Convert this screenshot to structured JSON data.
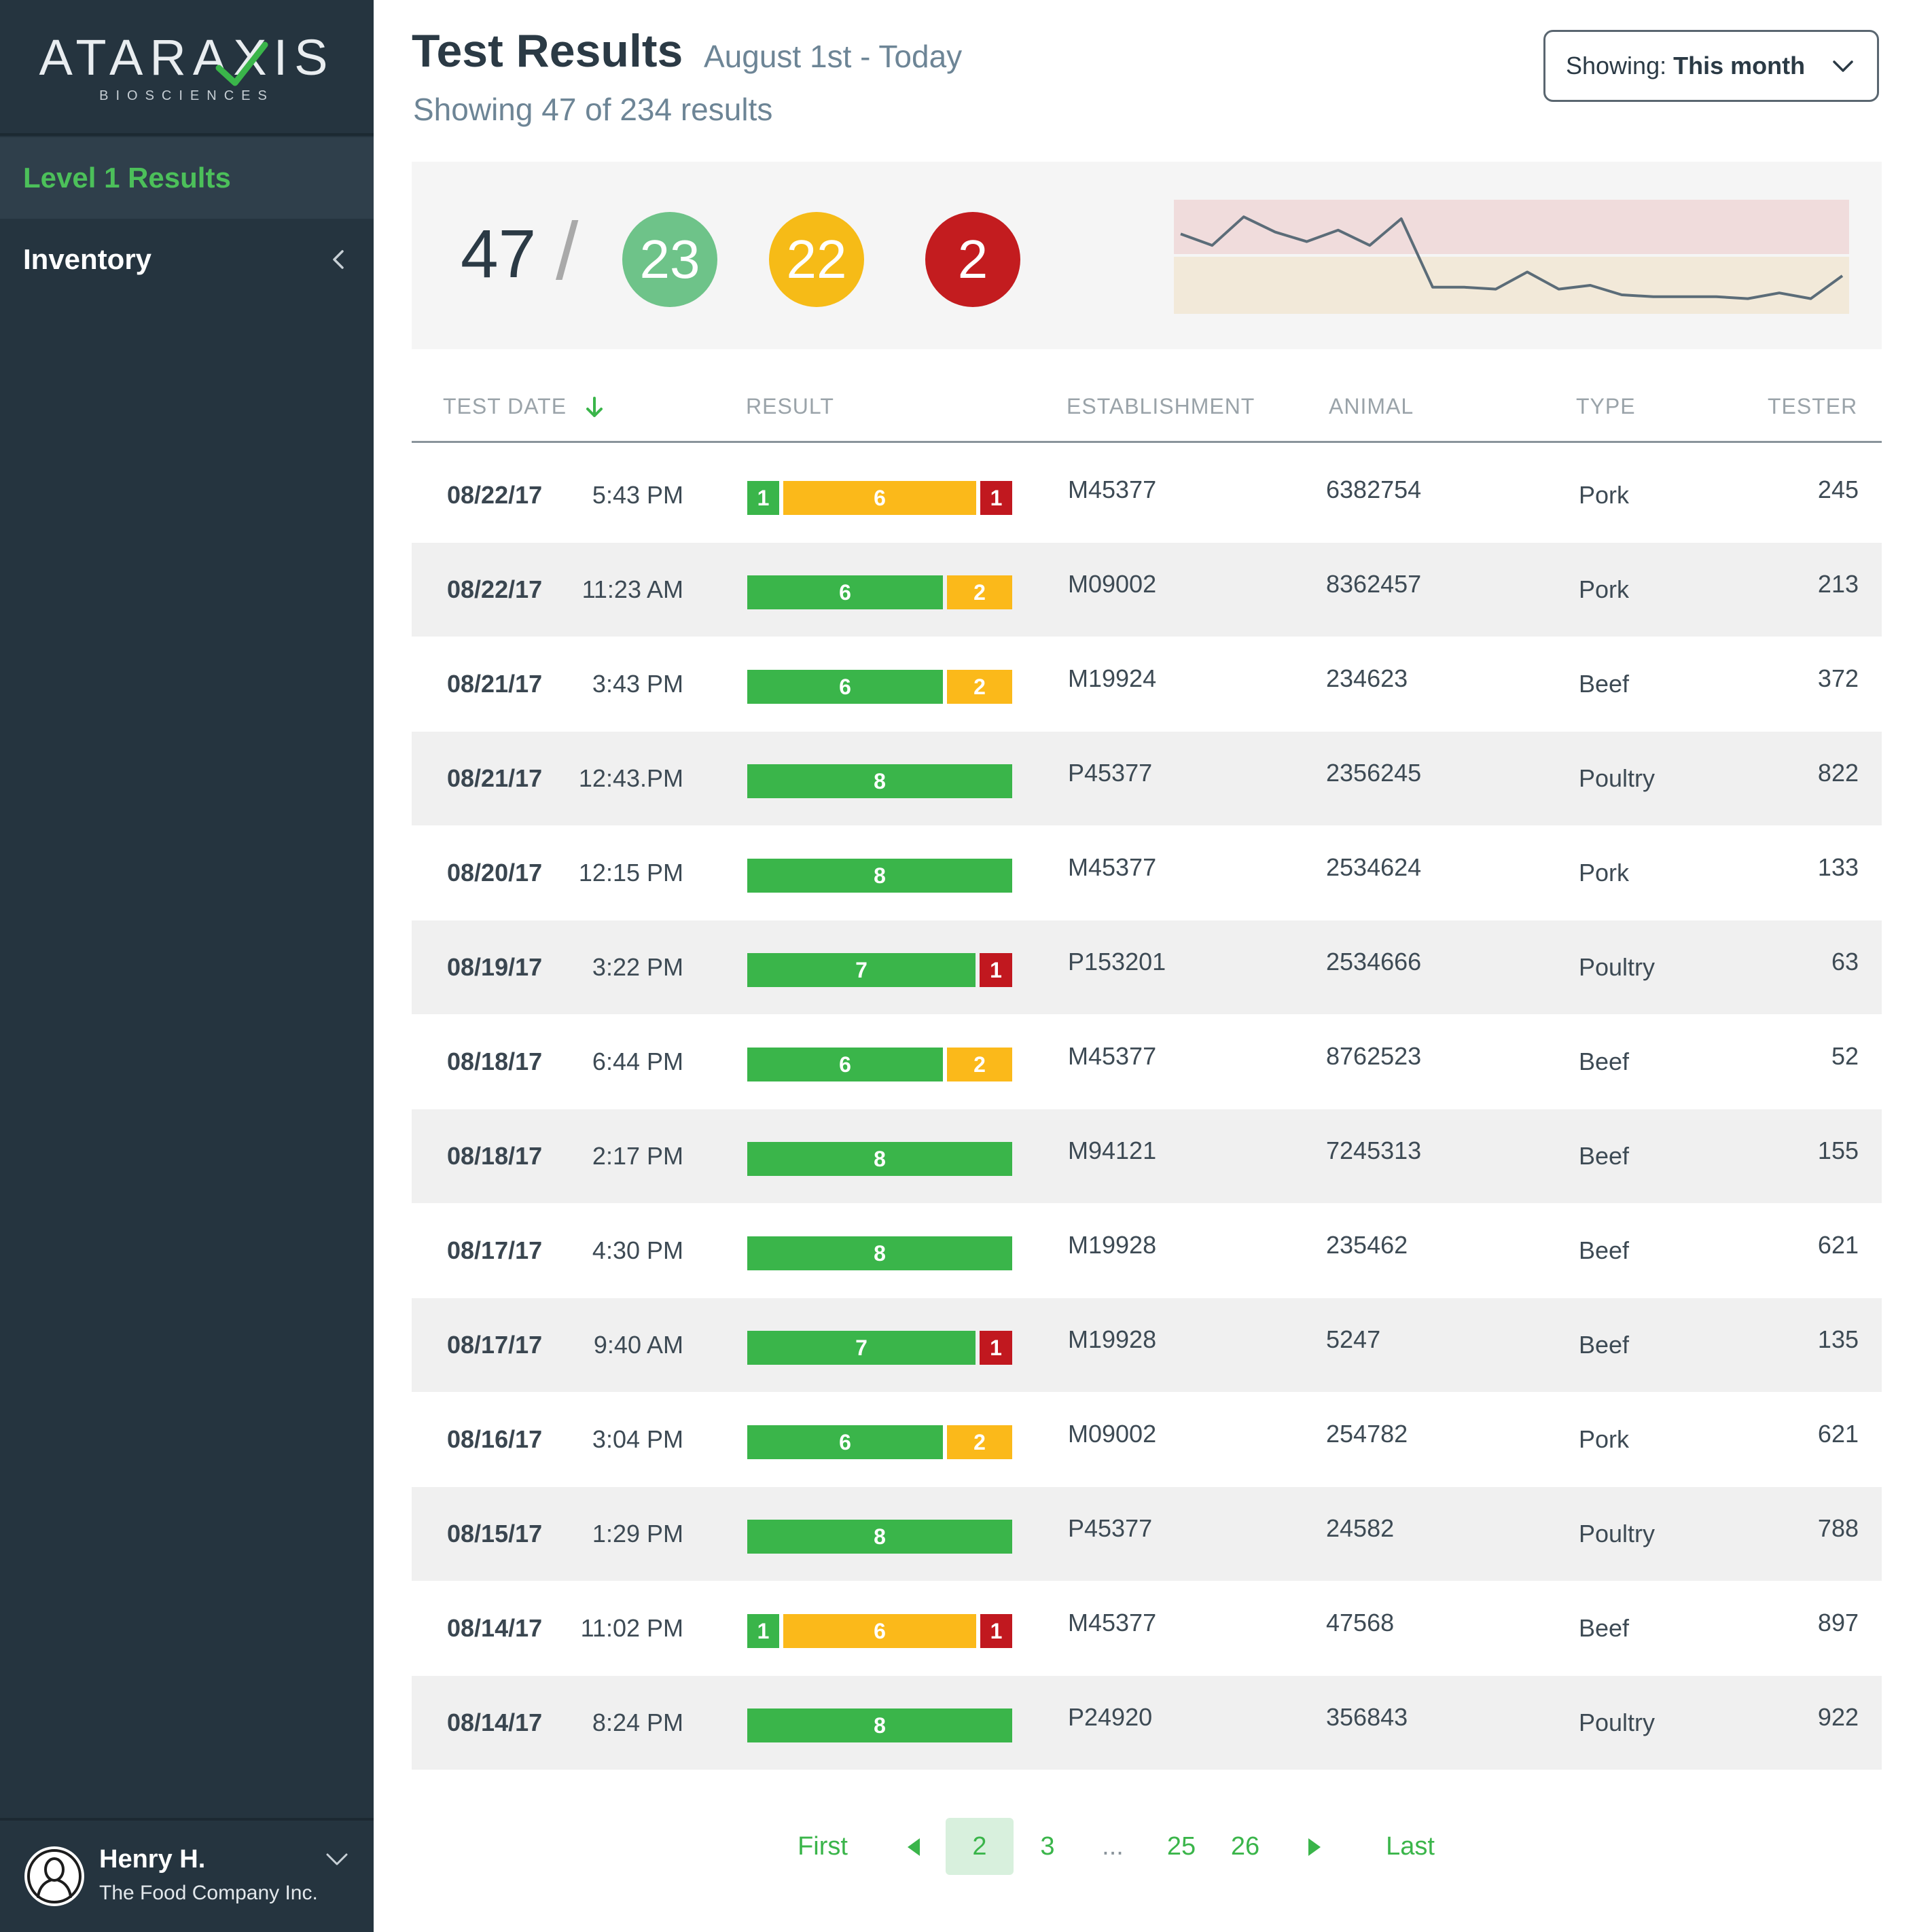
{
  "brand": {
    "name": "ATARAXIS",
    "tagline": "BIOSCIENCES"
  },
  "sidebar": {
    "items": [
      {
        "label": "Level 1 Results",
        "active": true
      },
      {
        "label": "Inventory",
        "active": false
      }
    ]
  },
  "user": {
    "name": "Henry H.",
    "company": "The Food Company Inc."
  },
  "header": {
    "title": "Test Results",
    "date_range": "August 1st - Today",
    "results_count": "Showing 47 of 234 results",
    "showing_prefix": "Showing:",
    "showing_value": "This month"
  },
  "summary": {
    "total": "47",
    "separator": "/",
    "pass": "23",
    "warning": "22",
    "fail": "2"
  },
  "sparkline_data": {
    "type": "line",
    "values": [
      5.2,
      4.6,
      6.1,
      5.3,
      4.8,
      5.4,
      4.6,
      6.0,
      2.4,
      2.4,
      2.3,
      3.2,
      2.3,
      2.5,
      2.0,
      1.9,
      1.9,
      1.9,
      1.8,
      2.1,
      1.8,
      3.0
    ],
    "bands": [
      {
        "color": "#f0dcdc",
        "range": "upper"
      },
      {
        "color": "#f2e9d9",
        "range": "lower"
      }
    ],
    "line_color": "#5b6c78"
  },
  "table": {
    "headers": [
      "TEST DATE",
      "RESULT",
      "ESTABLISHMENT",
      "ANIMAL",
      "TYPE",
      "TESTER"
    ],
    "rows": [
      {
        "date": "08/22/17",
        "time": "5:43 PM",
        "g": 1,
        "y": 6,
        "r": 1,
        "establishment": "M45377",
        "animal": "6382754",
        "type": "Pork",
        "tester": "245"
      },
      {
        "date": "08/22/17",
        "time": "11:23 AM",
        "g": 6,
        "y": 2,
        "r": 0,
        "establishment": "M09002",
        "animal": "8362457",
        "type": "Pork",
        "tester": "213"
      },
      {
        "date": "08/21/17",
        "time": "3:43 PM",
        "g": 6,
        "y": 2,
        "r": 0,
        "establishment": "M19924",
        "animal": "234623",
        "type": "Beef",
        "tester": "372"
      },
      {
        "date": "08/21/17",
        "time": "12:43.PM",
        "g": 8,
        "y": 0,
        "r": 0,
        "establishment": "P45377",
        "animal": "2356245",
        "type": "Poultry",
        "tester": "822"
      },
      {
        "date": "08/20/17",
        "time": "12:15 PM",
        "g": 8,
        "y": 0,
        "r": 0,
        "establishment": "M45377",
        "animal": "2534624",
        "type": "Pork",
        "tester": "133"
      },
      {
        "date": "08/19/17",
        "time": "3:22 PM",
        "g": 7,
        "y": 0,
        "r": 1,
        "establishment": "P153201",
        "animal": "2534666",
        "type": "Poultry",
        "tester": "63"
      },
      {
        "date": "08/18/17",
        "time": "6:44 PM",
        "g": 6,
        "y": 2,
        "r": 0,
        "establishment": "M45377",
        "animal": "8762523",
        "type": "Beef",
        "tester": "52"
      },
      {
        "date": "08/18/17",
        "time": "2:17 PM",
        "g": 8,
        "y": 0,
        "r": 0,
        "establishment": "M94121",
        "animal": "7245313",
        "type": "Beef",
        "tester": "155"
      },
      {
        "date": "08/17/17",
        "time": "4:30 PM",
        "g": 8,
        "y": 0,
        "r": 0,
        "establishment": "M19928",
        "animal": "235462",
        "type": "Beef",
        "tester": "621"
      },
      {
        "date": "08/17/17",
        "time": "9:40 AM",
        "g": 7,
        "y": 0,
        "r": 1,
        "establishment": "M19928",
        "animal": "5247",
        "type": "Beef",
        "tester": "135"
      },
      {
        "date": "08/16/17",
        "time": "3:04 PM",
        "g": 6,
        "y": 2,
        "r": 0,
        "establishment": "M09002",
        "animal": "254782",
        "type": "Pork",
        "tester": "621"
      },
      {
        "date": "08/15/17",
        "time": "1:29 PM",
        "g": 8,
        "y": 0,
        "r": 0,
        "establishment": "P45377",
        "animal": "24582",
        "type": "Poultry",
        "tester": "788"
      },
      {
        "date": "08/14/17",
        "time": "11:02 PM",
        "g": 1,
        "y": 6,
        "r": 1,
        "establishment": "M45377",
        "animal": "47568",
        "type": "Beef",
        "tester": "897"
      },
      {
        "date": "08/14/17",
        "time": "8:24 PM",
        "g": 8,
        "y": 0,
        "r": 0,
        "establishment": "P24920",
        "animal": "356843",
        "type": "Poultry",
        "tester": "922"
      }
    ]
  },
  "pagination": {
    "first": "First",
    "last": "Last",
    "pages": [
      "2",
      "3",
      "...",
      "25",
      "26"
    ],
    "current": "2"
  },
  "colors": {
    "pass": "#3ab54a",
    "warning": "#fbb91a",
    "fail": "#c1181f",
    "sidebar": "#25343f",
    "accent": "#4cc05a"
  },
  "icons": {
    "sort": "arrow-down-icon",
    "nav": "chevron-left-icon",
    "user": "user-avatar-icon",
    "prev": "triangle-left-icon",
    "next": "triangle-right-icon"
  }
}
